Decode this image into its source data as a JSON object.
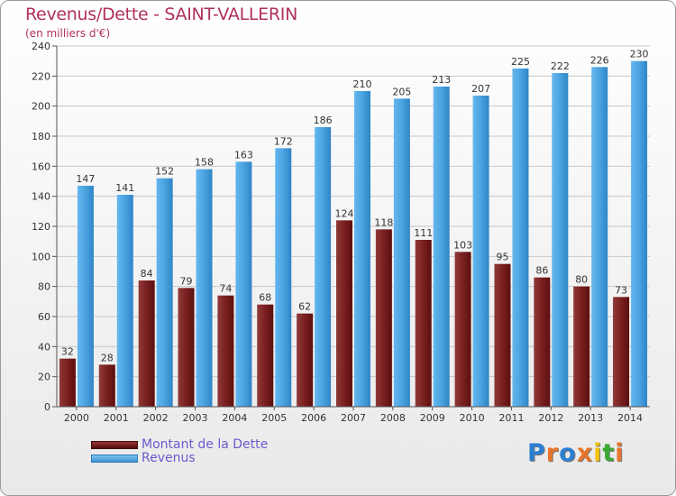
{
  "header": {
    "title": "Revenus/Dette - SAINT-VALLERIN",
    "subtitle": "(en milliers d'€)"
  },
  "legend": {
    "items": [
      {
        "label": "Montant de la Dette",
        "color": "#7b1a1a"
      },
      {
        "label": "Revenus",
        "color": "#4aa3e0"
      }
    ]
  },
  "logo": {
    "letters": [
      "P",
      "r",
      "o",
      "x",
      "i",
      "t",
      "i"
    ],
    "colors": [
      "#2b7fd0",
      "#e8742b",
      "#2b7fd0",
      "#e8742b",
      "#f2c10f",
      "#3aaa35",
      "#e8742b"
    ]
  },
  "chart_data": {
    "type": "bar",
    "categories": [
      "2000",
      "2001",
      "2002",
      "2003",
      "2004",
      "2005",
      "2006",
      "2007",
      "2008",
      "2009",
      "2010",
      "2011",
      "2012",
      "2013",
      "2014"
    ],
    "series": [
      {
        "name": "Montant de la Dette",
        "color": "#7b1a1a",
        "values": [
          32,
          28,
          84,
          79,
          74,
          68,
          62,
          124,
          118,
          111,
          103,
          95,
          86,
          80,
          73
        ]
      },
      {
        "name": "Revenus",
        "color": "#4aa3e0",
        "values": [
          147,
          141,
          152,
          158,
          163,
          172,
          186,
          210,
          205,
          213,
          207,
          225,
          222,
          226,
          230
        ]
      }
    ],
    "ylim": [
      0,
      240
    ],
    "yticks": [
      0,
      20,
      40,
      60,
      80,
      100,
      120,
      140,
      160,
      180,
      200,
      220,
      240
    ],
    "grid": true,
    "legend_position": "bottom-left"
  }
}
